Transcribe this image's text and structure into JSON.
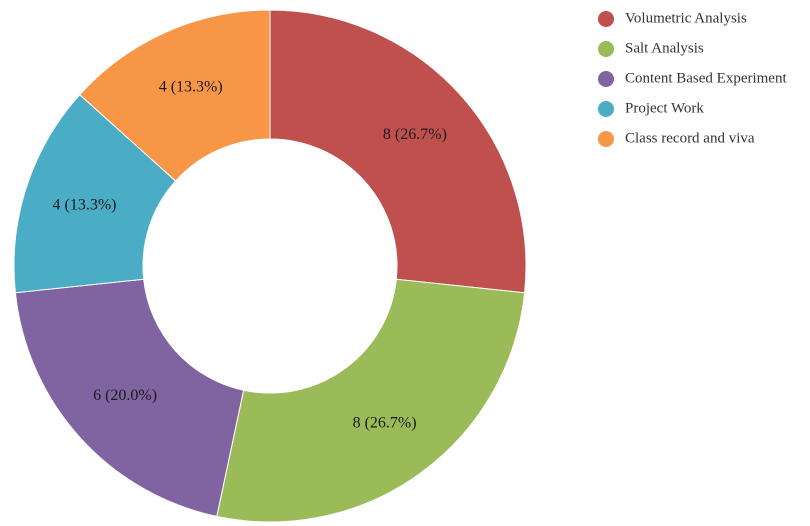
{
  "chart_data": {
    "type": "pie",
    "variant": "donut",
    "title": "",
    "labels": [
      "Volumetric Analysis",
      "Salt Analysis",
      "Content Based Experiment",
      "Project Work",
      "Class record and viva"
    ],
    "values": [
      8,
      8,
      6,
      4,
      4
    ],
    "value_labels": [
      "8 (26.7%)",
      "8 (26.7%)",
      "6 (20.0%)",
      "4 (13.3%)",
      "4 (13.3%)"
    ],
    "colors": [
      "#c0504d",
      "#9bbb59",
      "#8064a2",
      "#4bacc6",
      "#f79646"
    ],
    "legend": {
      "position": "top-right"
    }
  }
}
